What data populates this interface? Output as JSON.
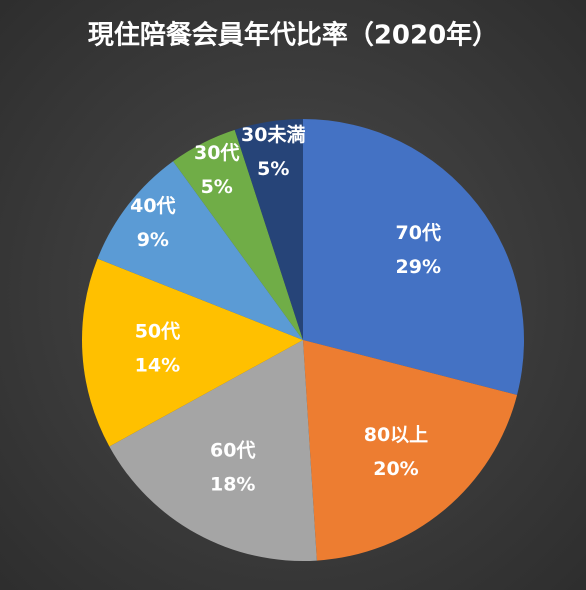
{
  "chart_data": {
    "type": "pie",
    "title": "現住陪餐会員年代比率（2020年）",
    "categories": [
      "70代",
      "80以上",
      "60代",
      "50代",
      "40代",
      "30代",
      "30未満"
    ],
    "values": [
      29,
      20,
      18,
      14,
      9,
      5,
      5
    ],
    "value_labels": [
      "29%",
      "20%",
      "18%",
      "14%",
      "9%",
      "5%",
      "5%"
    ],
    "colors": [
      "#4472c4",
      "#ed7d31",
      "#a5a5a5",
      "#ffc000",
      "#5b9bd5",
      "#70ad47",
      "#264478"
    ]
  }
}
